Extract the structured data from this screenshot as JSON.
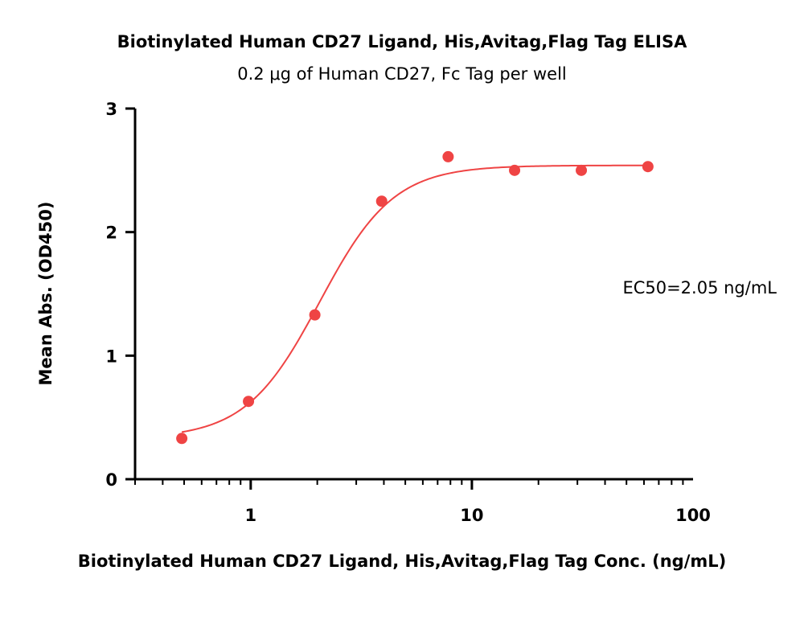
{
  "chart_data": {
    "type": "scatter",
    "title": "Biotinylated Human CD27 Ligand, His,Avitag,Flag Tag ELISA",
    "subtitle": "0.2 μg of Human CD27, Fc Tag per well",
    "xlabel": "Biotinylated Human CD27 Ligand, His,Avitag,Flag Tag Conc. (ng/mL)",
    "ylabel": "Mean Abs. (OD450)",
    "x_scale": "log",
    "xlim": [
      0.3,
      100
    ],
    "ylim": [
      0,
      3
    ],
    "x_ticks": [
      1,
      10,
      100
    ],
    "x_tick_labels": [
      "1",
      "10",
      "100"
    ],
    "y_ticks": [
      0,
      1,
      2,
      3
    ],
    "y_tick_labels": [
      "0",
      "1",
      "2",
      "3"
    ],
    "grid": false,
    "color": "#ef4444",
    "series": [
      {
        "x": [
          0.488,
          0.977,
          1.95,
          3.91,
          7.81,
          15.6,
          31.25,
          62.5
        ],
        "y": [
          0.33,
          0.63,
          1.33,
          2.25,
          2.61,
          2.5,
          2.5,
          2.53
        ]
      }
    ],
    "fit": {
      "type": "4PL",
      "bottom": 0.33,
      "top": 2.54,
      "ec50": 2.05,
      "hill": 2.6
    },
    "annotation": "EC50=2.05 ng/mL"
  }
}
